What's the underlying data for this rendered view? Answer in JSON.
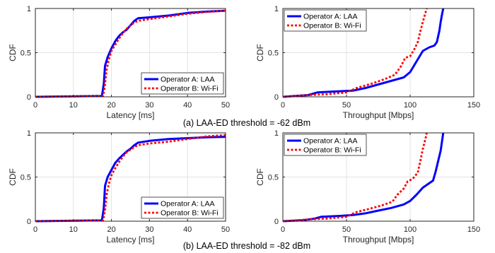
{
  "figure": {
    "captions": [
      "(a) LAA-ED threshold = -62 dBm",
      "(b) LAA-ED threshold = -82 dBm"
    ]
  },
  "colors": {
    "laa": "#0000ff",
    "wifi": "#ff0000",
    "axis": "#262626",
    "grid": "#e3e3e3"
  },
  "chart_data": [
    {
      "type": "line",
      "panel": "a-latency",
      "xlabel": "Latency [ms]",
      "ylabel": "CDF",
      "xlim": [
        0,
        50
      ],
      "ylim": [
        0,
        1
      ],
      "xticks": [
        0,
        10,
        20,
        30,
        40,
        50
      ],
      "yticks": [
        0,
        0.5,
        1
      ],
      "ytick_labels": [
        "0",
        "0.5",
        "1"
      ],
      "grid": true,
      "legend_position": "bottom-right",
      "series": [
        {
          "name": "Operator A: LAA",
          "style": "solid",
          "points": [
            [
              0,
              0
            ],
            [
              17.5,
              0.01
            ],
            [
              18.0,
              0.15
            ],
            [
              18.3,
              0.35
            ],
            [
              19,
              0.45
            ],
            [
              20,
              0.55
            ],
            [
              21,
              0.63
            ],
            [
              22,
              0.69
            ],
            [
              23,
              0.73
            ],
            [
              24,
              0.76
            ],
            [
              25,
              0.81
            ],
            [
              26,
              0.86
            ],
            [
              27,
              0.89
            ],
            [
              30,
              0.9
            ],
            [
              35,
              0.92
            ],
            [
              40,
              0.95
            ],
            [
              45,
              0.965
            ],
            [
              50,
              0.975
            ]
          ]
        },
        {
          "name": "Operator B: Wi-Fi",
          "style": "dotted",
          "points": [
            [
              0,
              0
            ],
            [
              17.8,
              0.01
            ],
            [
              18.2,
              0.1
            ],
            [
              18.7,
              0.3
            ],
            [
              19.3,
              0.42
            ],
            [
              20,
              0.52
            ],
            [
              21,
              0.59
            ],
            [
              22,
              0.66
            ],
            [
              23,
              0.72
            ],
            [
              24,
              0.77
            ],
            [
              25,
              0.81
            ],
            [
              26,
              0.84
            ],
            [
              27,
              0.86
            ],
            [
              30,
              0.88
            ],
            [
              35,
              0.91
            ],
            [
              40,
              0.94
            ],
            [
              45,
              0.96
            ],
            [
              50,
              0.975
            ]
          ]
        }
      ]
    },
    {
      "type": "line",
      "panel": "a-throughput",
      "xlabel": "Throughput [Mbps]",
      "ylabel": "CDF",
      "xlim": [
        0,
        150
      ],
      "ylim": [
        0,
        1
      ],
      "xticks": [
        0,
        50,
        100,
        150
      ],
      "yticks": [
        0,
        0.5,
        1
      ],
      "ytick_labels": [
        "0",
        "0.5",
        "1"
      ],
      "grid": true,
      "legend_position": "top-left",
      "series": [
        {
          "name": "Operator A: LAA",
          "style": "solid",
          "points": [
            [
              0,
              0
            ],
            [
              10,
              0.01
            ],
            [
              20,
              0.02
            ],
            [
              27,
              0.05
            ],
            [
              40,
              0.06
            ],
            [
              55,
              0.07
            ],
            [
              65,
              0.1
            ],
            [
              75,
              0.14
            ],
            [
              85,
              0.18
            ],
            [
              95,
              0.22
            ],
            [
              100,
              0.28
            ],
            [
              105,
              0.4
            ],
            [
              110,
              0.52
            ],
            [
              115,
              0.56
            ],
            [
              119,
              0.58
            ],
            [
              121,
              0.62
            ],
            [
              123,
              0.75
            ],
            [
              124,
              0.85
            ],
            [
              125,
              0.93
            ],
            [
              126,
              1.0
            ]
          ]
        },
        {
          "name": "Operator B: Wi-Fi",
          "style": "dotted",
          "points": [
            [
              0,
              0
            ],
            [
              10,
              0.01
            ],
            [
              20,
              0.02
            ],
            [
              35,
              0.03
            ],
            [
              50,
              0.05
            ],
            [
              58,
              0.1
            ],
            [
              70,
              0.15
            ],
            [
              80,
              0.2
            ],
            [
              88,
              0.25
            ],
            [
              93,
              0.35
            ],
            [
              96,
              0.44
            ],
            [
              100,
              0.46
            ],
            [
              103,
              0.53
            ],
            [
              106,
              0.62
            ],
            [
              108,
              0.74
            ],
            [
              110,
              0.85
            ],
            [
              112,
              0.95
            ],
            [
              113,
              1.0
            ]
          ]
        }
      ]
    },
    {
      "type": "line",
      "panel": "b-latency",
      "xlabel": "Latency [ms]",
      "ylabel": "CDF",
      "xlim": [
        0,
        50
      ],
      "ylim": [
        0,
        1
      ],
      "xticks": [
        0,
        10,
        20,
        30,
        40,
        50
      ],
      "yticks": [
        0,
        0.5,
        1
      ],
      "ytick_labels": [
        "0",
        "0.5",
        "1"
      ],
      "grid": true,
      "legend_position": "bottom-right",
      "series": [
        {
          "name": "Operator A: LAA",
          "style": "solid",
          "points": [
            [
              0,
              0
            ],
            [
              17.5,
              0.01
            ],
            [
              18.0,
              0.15
            ],
            [
              18.3,
              0.4
            ],
            [
              19,
              0.5
            ],
            [
              20,
              0.58
            ],
            [
              21,
              0.66
            ],
            [
              22,
              0.71
            ],
            [
              23,
              0.75
            ],
            [
              24,
              0.79
            ],
            [
              25,
              0.82
            ],
            [
              26,
              0.86
            ],
            [
              27,
              0.89
            ],
            [
              30,
              0.91
            ],
            [
              35,
              0.93
            ],
            [
              40,
              0.94
            ],
            [
              45,
              0.95
            ],
            [
              50,
              0.955
            ]
          ]
        },
        {
          "name": "Operator B: Wi-Fi",
          "style": "dotted",
          "points": [
            [
              0,
              0
            ],
            [
              17.8,
              0.01
            ],
            [
              18.3,
              0.12
            ],
            [
              18.8,
              0.32
            ],
            [
              19.5,
              0.45
            ],
            [
              20,
              0.52
            ],
            [
              21,
              0.6
            ],
            [
              22,
              0.67
            ],
            [
              23,
              0.73
            ],
            [
              24,
              0.78
            ],
            [
              25,
              0.81
            ],
            [
              26,
              0.84
            ],
            [
              27,
              0.86
            ],
            [
              30,
              0.88
            ],
            [
              35,
              0.9
            ],
            [
              40,
              0.93
            ],
            [
              45,
              0.96
            ],
            [
              50,
              0.975
            ]
          ]
        }
      ]
    },
    {
      "type": "line",
      "panel": "b-throughput",
      "xlabel": "Throughput [Mbps]",
      "ylabel": "CDF",
      "xlim": [
        0,
        150
      ],
      "ylim": [
        0,
        1
      ],
      "xticks": [
        0,
        50,
        100,
        150
      ],
      "yticks": [
        0,
        0.5,
        1
      ],
      "ytick_labels": [
        "0",
        "0.5",
        "1"
      ],
      "grid": true,
      "legend_position": "top-left",
      "series": [
        {
          "name": "Operator A: LAA",
          "style": "solid",
          "points": [
            [
              0,
              0
            ],
            [
              15,
              0.01
            ],
            [
              25,
              0.03
            ],
            [
              30,
              0.05
            ],
            [
              45,
              0.06
            ],
            [
              55,
              0.07
            ],
            [
              65,
              0.09
            ],
            [
              75,
              0.12
            ],
            [
              85,
              0.15
            ],
            [
              95,
              0.19
            ],
            [
              100,
              0.23
            ],
            [
              105,
              0.3
            ],
            [
              110,
              0.38
            ],
            [
              114,
              0.42
            ],
            [
              118,
              0.46
            ],
            [
              120,
              0.56
            ],
            [
              122,
              0.68
            ],
            [
              124,
              0.8
            ],
            [
              125,
              0.9
            ],
            [
              126,
              1.0
            ]
          ]
        },
        {
          "name": "Operator B: Wi-Fi",
          "style": "dotted",
          "points": [
            [
              0,
              0
            ],
            [
              20,
              0.02
            ],
            [
              35,
              0.03
            ],
            [
              50,
              0.05
            ],
            [
              57,
              0.1
            ],
            [
              68,
              0.14
            ],
            [
              78,
              0.18
            ],
            [
              86,
              0.22
            ],
            [
              90,
              0.3
            ],
            [
              95,
              0.37
            ],
            [
              98,
              0.45
            ],
            [
              102,
              0.48
            ],
            [
              106,
              0.55
            ],
            [
              108,
              0.68
            ],
            [
              110,
              0.82
            ],
            [
              112,
              0.93
            ],
            [
              113,
              1.0
            ]
          ]
        }
      ]
    }
  ]
}
